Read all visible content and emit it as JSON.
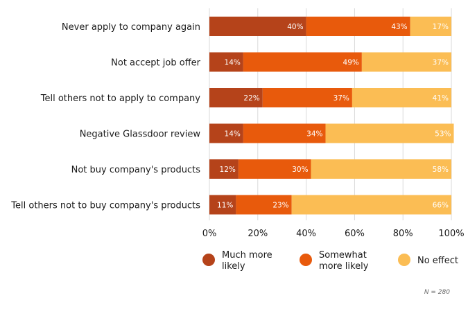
{
  "chart_data": {
    "type": "bar",
    "orientation": "horizontal",
    "stacked": true,
    "categories": [
      "Never apply to company again",
      "Not accept job offer",
      "Tell others not to apply to company",
      "Negative Glassdoor review",
      "Not buy company's products",
      "Tell others not to buy company's products"
    ],
    "series": [
      {
        "name": "Much more likely",
        "legend_lines": [
          "Much more",
          "likely"
        ],
        "color": "#b5431a",
        "values": [
          40,
          14,
          22,
          14,
          12,
          11
        ],
        "labels": [
          "40%",
          "14%",
          "22%",
          "14%",
          "12%",
          "11%"
        ]
      },
      {
        "name": "Somewhat more likely",
        "legend_lines": [
          "Somewhat",
          "more likely"
        ],
        "color": "#e85a0c",
        "values": [
          43,
          49,
          37,
          34,
          30,
          23
        ],
        "labels": [
          "43%",
          "49%",
          "37%",
          "34%",
          "30%",
          "23%"
        ]
      },
      {
        "name": "No effect",
        "legend_lines": [
          "No effect"
        ],
        "color": "#fbbd54",
        "values": [
          17,
          37,
          41,
          53,
          58,
          66
        ],
        "labels": [
          "17%",
          "37%",
          "41%",
          "53%",
          "58%",
          "66%"
        ]
      }
    ],
    "xlim": [
      0,
      100
    ],
    "xticks": [
      0,
      20,
      40,
      60,
      80,
      100
    ],
    "xtick_labels": [
      "0%",
      "20%",
      "40%",
      "60%",
      "80%",
      "100%"
    ],
    "grid": true,
    "legend_placement": "bottom",
    "note": "N = 280"
  }
}
